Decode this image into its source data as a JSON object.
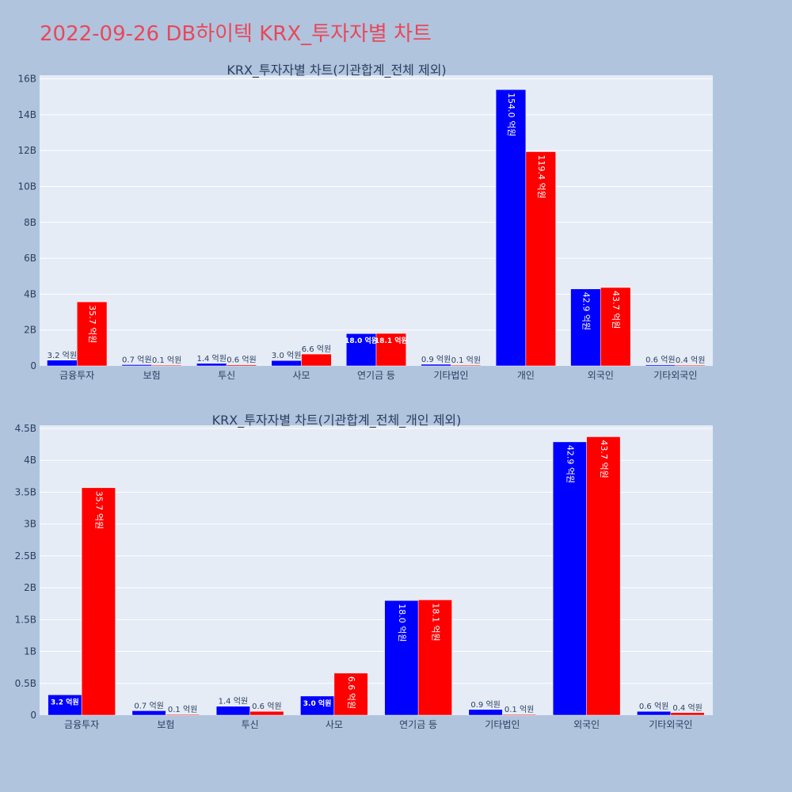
{
  "page_title": "2022-09-26 DB하이텍 KRX_투자자별 차트",
  "colors": {
    "buy": "#0000ff",
    "sell": "#ff0000",
    "plot_bg": "#e5ecf6",
    "paper_bg": "#b0c4de",
    "title": "#e8485a"
  },
  "chart_data": [
    {
      "type": "bar",
      "title": "KRX_투자자별 차트(기관합계_전체 제외)",
      "categories": [
        "금융투자",
        "보험",
        "투신",
        "사모",
        "연기금 등",
        "기타법인",
        "개인",
        "외국인",
        "기타외국인"
      ],
      "series": [
        {
          "values": [
            0.32,
            0.07,
            0.14,
            0.3,
            1.8,
            0.09,
            15.4,
            4.29,
            0.06
          ],
          "labels": [
            "3.2 억원",
            "0.7 억원",
            "1.4 억원",
            "3.0 억원",
            "18.0 억원",
            "0.9 억원",
            "154.0 억원",
            "42.9 억원",
            "0.6 억원"
          ]
        },
        {
          "values": [
            3.57,
            0.01,
            0.06,
            0.66,
            1.81,
            0.01,
            11.94,
            4.37,
            0.04
          ],
          "labels": [
            "35.7 억원",
            "0.1 억원",
            "0.6 억원",
            "6.6 억원",
            "18.1 억원",
            "0.1 억원",
            "119.4 억원",
            "43.7 억원",
            "0.4 억원"
          ]
        }
      ],
      "yunit": "B",
      "yticks": [
        0,
        2,
        4,
        6,
        8,
        10,
        12,
        14,
        16
      ],
      "ytick_labels": [
        "0",
        "2B",
        "4B",
        "6B",
        "8B",
        "10B",
        "12B",
        "14B",
        "16B"
      ],
      "ylim": [
        0,
        16.2
      ],
      "grid": true
    },
    {
      "type": "bar",
      "title": "KRX_투자자별 차트(기관합계_전체_개인 제외)",
      "categories": [
        "금융투자",
        "보험",
        "투신",
        "사모",
        "연기금 등",
        "기타법인",
        "외국인",
        "기타외국인"
      ],
      "series": [
        {
          "values": [
            0.32,
            0.07,
            0.14,
            0.3,
            1.8,
            0.09,
            4.29,
            0.06
          ],
          "labels": [
            "3.2 억원",
            "0.7 억원",
            "1.4 억원",
            "3.0 억원",
            "18.0 억원",
            "0.9 억원",
            "42.9 억원",
            "0.6 억원"
          ]
        },
        {
          "values": [
            3.57,
            0.01,
            0.06,
            0.66,
            1.81,
            0.01,
            4.37,
            0.04
          ],
          "labels": [
            "35.7 억원",
            "0.1 억원",
            "0.6 억원",
            "6.6 억원",
            "18.1 억원",
            "0.1 억원",
            "43.7 억원",
            "0.4 억원"
          ]
        }
      ],
      "yunit": "B",
      "yticks": [
        0,
        0.5,
        1,
        1.5,
        2,
        2.5,
        3,
        3.5,
        4,
        4.5
      ],
      "ytick_labels": [
        "0",
        "0.5B",
        "1B",
        "1.5B",
        "2B",
        "2.5B",
        "3B",
        "3.5B",
        "4B",
        "4.5B"
      ],
      "ylim": [
        0,
        4.55
      ],
      "grid": true
    }
  ]
}
